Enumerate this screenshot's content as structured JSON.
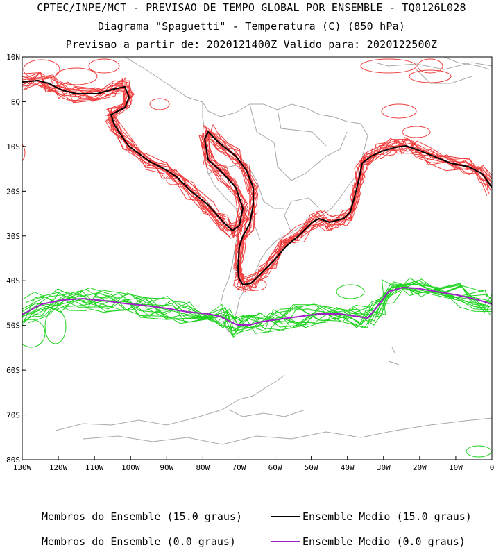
{
  "titles": {
    "line1": "CPTEC/INPE/MCT - PREVISAO DE TEMPO GLOBAL POR ENSEMBLE - TQ0126L028",
    "line2": "Diagrama \"Spaguetti\" - Temperatura (C) (850 hPa)",
    "line3": "Previsao a partir de: 2020121400Z  Valido para: 2020122500Z"
  },
  "map": {
    "lat_labels": [
      "10N",
      "EQ",
      "10S",
      "20S",
      "30S",
      "40S",
      "50S",
      "60S",
      "70S",
      "80S"
    ],
    "lon_labels": [
      "130W",
      "120W",
      "110W",
      "100W",
      "90W",
      "80W",
      "70W",
      "60W",
      "50W",
      "40W",
      "30W",
      "20W",
      "10W",
      "0"
    ],
    "lat_range": [
      -80,
      10
    ],
    "lon_range": [
      -130,
      0
    ]
  },
  "colors": {
    "member_15": "#f03c3c",
    "mean_15": "#000000",
    "member_0": "#1ed21e",
    "mean_0": "#a020c8",
    "coast": "#a8a8a8"
  },
  "legend": {
    "member_15": "Membros do Ensemble (15.0 graus)",
    "mean_15": "Ensemble Medio (15.0 graus)",
    "member_0": "Membros do Ensemble (0.0 graus)",
    "mean_0": "Ensemble Medio (0.0 graus)"
  }
}
